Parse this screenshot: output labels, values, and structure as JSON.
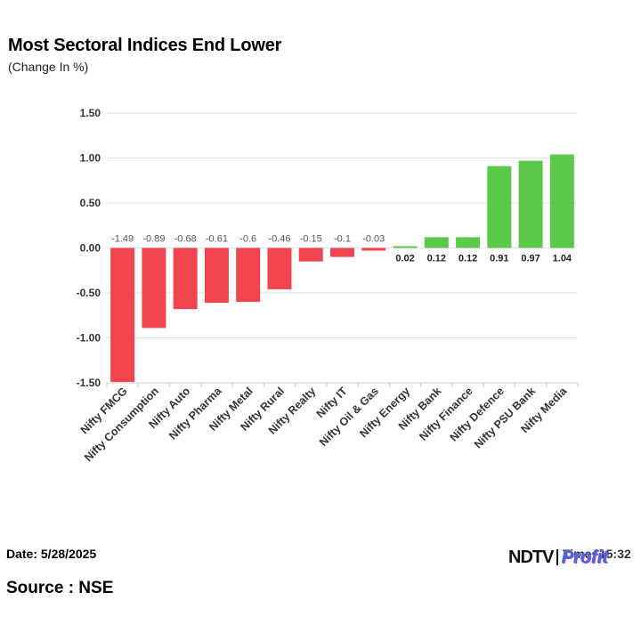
{
  "header": {
    "title": "Most Sectoral Indices End Lower",
    "subtitle": "(Change In %)"
  },
  "footer": {
    "date": "Date: 5/28/2025",
    "source": "Source : NSE",
    "time": "Time: 15:32",
    "brand_ndtv": "NDTV",
    "brand_profit": "Profit"
  },
  "colors": {
    "negative": "#f0454f",
    "positive": "#5cc94a",
    "grid": "#e3e3e3",
    "axis_text": "#333333"
  },
  "chart_data": {
    "type": "bar",
    "title": "Most Sectoral Indices End Lower",
    "subtitle": "(Change In %)",
    "categories": [
      "Nifty FMCG",
      "Nifty Consumption",
      "Nifty Auto",
      "Nifty Pharma",
      "Nifty Metal",
      "Nifty Rural",
      "Nifty Realty",
      "Nifty IT",
      "Nifty Oil & Gas",
      "Nifty Energy",
      "Nifty Bank",
      "Nifty Finance",
      "Nifty Defence",
      "Nifty PSU Bank",
      "Nifty Media"
    ],
    "values": [
      -1.49,
      -0.89,
      -0.68,
      -0.61,
      -0.6,
      -0.46,
      -0.15,
      -0.1,
      -0.03,
      0.02,
      0.12,
      0.12,
      0.91,
      0.97,
      1.04
    ],
    "data_labels": [
      "-1.49",
      "-0.89",
      "-0.68",
      "-0.61",
      "-0.6",
      "-0.46",
      "-0.15",
      "-0.1",
      "-0.03",
      "0.02",
      "0.12",
      "0.12",
      "0.91",
      "0.97",
      "1.04"
    ],
    "yticks": [
      "1.50",
      "1.00",
      "0.50",
      "0.00",
      "-0.50",
      "-1.00",
      "-1.50"
    ],
    "ytick_values": [
      1.5,
      1.0,
      0.5,
      0.0,
      -0.5,
      -1.0,
      -1.5
    ],
    "ylim": [
      -1.5,
      1.5
    ],
    "xlabel": "",
    "ylabel": "",
    "grid": true,
    "legend": "none"
  }
}
